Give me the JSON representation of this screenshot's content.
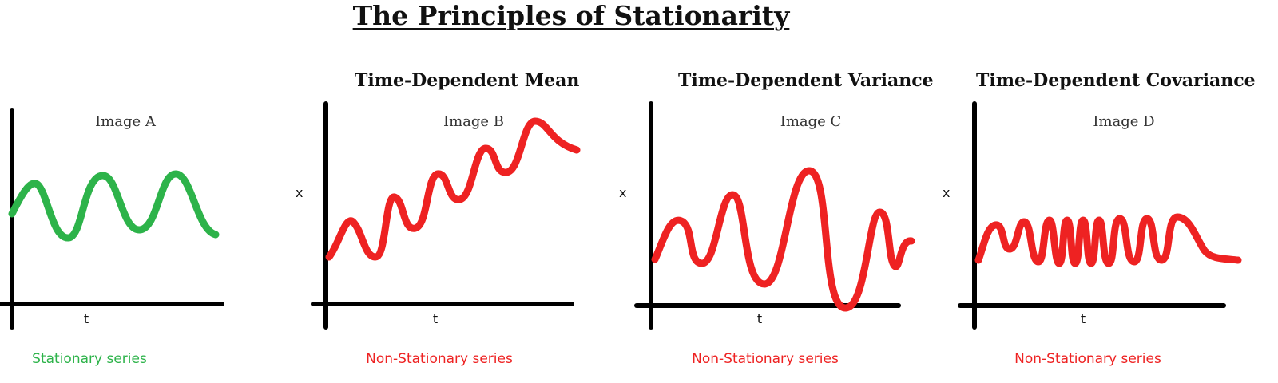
{
  "title": "The Principles of Stationarity",
  "colors": {
    "stationary": "#2db34a",
    "non_stationary": "#ee2222",
    "axis": "#000000"
  },
  "panels": [
    {
      "heading": "",
      "image_label": "Image A",
      "y_label": "",
      "x_label": "t",
      "caption": "Stationary series",
      "status": "stationary",
      "pattern": "constant mean, constant variance, regular oscillation"
    },
    {
      "heading": "Time-Dependent Mean",
      "image_label": "Image B",
      "y_label": "x",
      "x_label": "t",
      "caption": "Non-Stationary series",
      "status": "non_stationary",
      "pattern": "oscillation with upward-trending mean"
    },
    {
      "heading": "Time-Dependent Variance",
      "image_label": "Image C",
      "y_label": "x",
      "x_label": "t",
      "caption": "Non-Stationary series",
      "status": "non_stationary",
      "pattern": "oscillation with changing amplitude"
    },
    {
      "heading": "Time-Dependent Covariance",
      "image_label": "Image D",
      "y_label": "x",
      "x_label": "t",
      "caption": "Non-Stationary series",
      "status": "non_stationary",
      "pattern": "oscillation with changing frequency"
    }
  ]
}
